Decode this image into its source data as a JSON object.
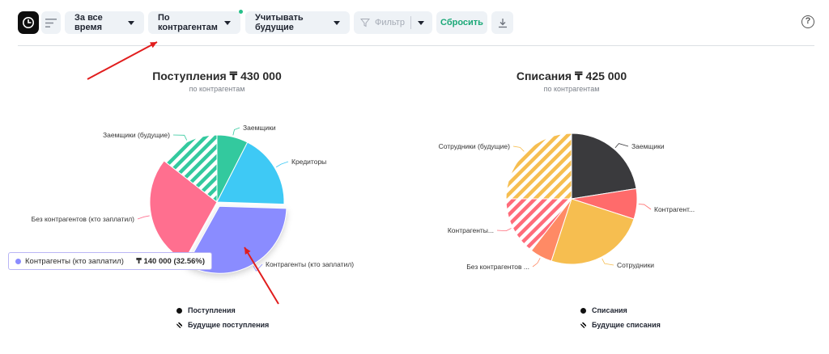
{
  "toolbar": {
    "period_label": "За все время",
    "group_label": "По контрагентам",
    "future_label": "Учитывать будущие",
    "filter_label": "Фильтр",
    "reset_label": "Сбросить"
  },
  "help_symbol": "?",
  "tooltip": {
    "label": "Контрагенты (кто заплатил)",
    "value": "₸ 140 000 (32.56%)",
    "color": "#8a8cff"
  },
  "chart_data": [
    {
      "type": "pie",
      "title": "Поступления ₸ 430 000",
      "subtitle": "по контрагентам",
      "slices": [
        {
          "label": "Заемщики",
          "percent": 7.5,
          "color": "#33c99e",
          "future": false
        },
        {
          "label": "Кредиторы",
          "percent": 18.0,
          "color": "#3ec9f5",
          "future": false
        },
        {
          "label": "Контрагенты (кто заплатил)",
          "percent": 32.56,
          "color": "#8a8cff",
          "future": false
        },
        {
          "label": "Без контрагентов (кто заплатил)",
          "percent": 27.5,
          "color": "#ff6f8f",
          "future": false
        },
        {
          "label": "Заемщики (будущие)",
          "percent": 14.44,
          "color": "#33c99e",
          "future": true
        }
      ],
      "legend": [
        "Поступления",
        "Будущие поступления"
      ]
    },
    {
      "type": "pie",
      "title": "Списания ₸ 425 000",
      "subtitle": "по контрагентам",
      "slices": [
        {
          "label": "Заемщики",
          "percent": 22.5,
          "color": "#3a3a3d",
          "future": false
        },
        {
          "label": "Контрагент...",
          "percent": 7.5,
          "color": "#ff6b6b",
          "future": false
        },
        {
          "label": "Сотрудники",
          "percent": 25.0,
          "color": "#f6be50",
          "future": false
        },
        {
          "label": "Без контрагентов ...",
          "percent": 5.5,
          "color": "#ff8a65",
          "future": false
        },
        {
          "label": "Контрагенты...",
          "percent": 14.5,
          "color": "#ff6b7a",
          "future": true
        },
        {
          "label": "Сотрудники (будущие)",
          "percent": 25.0,
          "color": "#f6be50",
          "future": true
        }
      ],
      "legend": [
        "Списания",
        "Будущие списания"
      ]
    }
  ]
}
